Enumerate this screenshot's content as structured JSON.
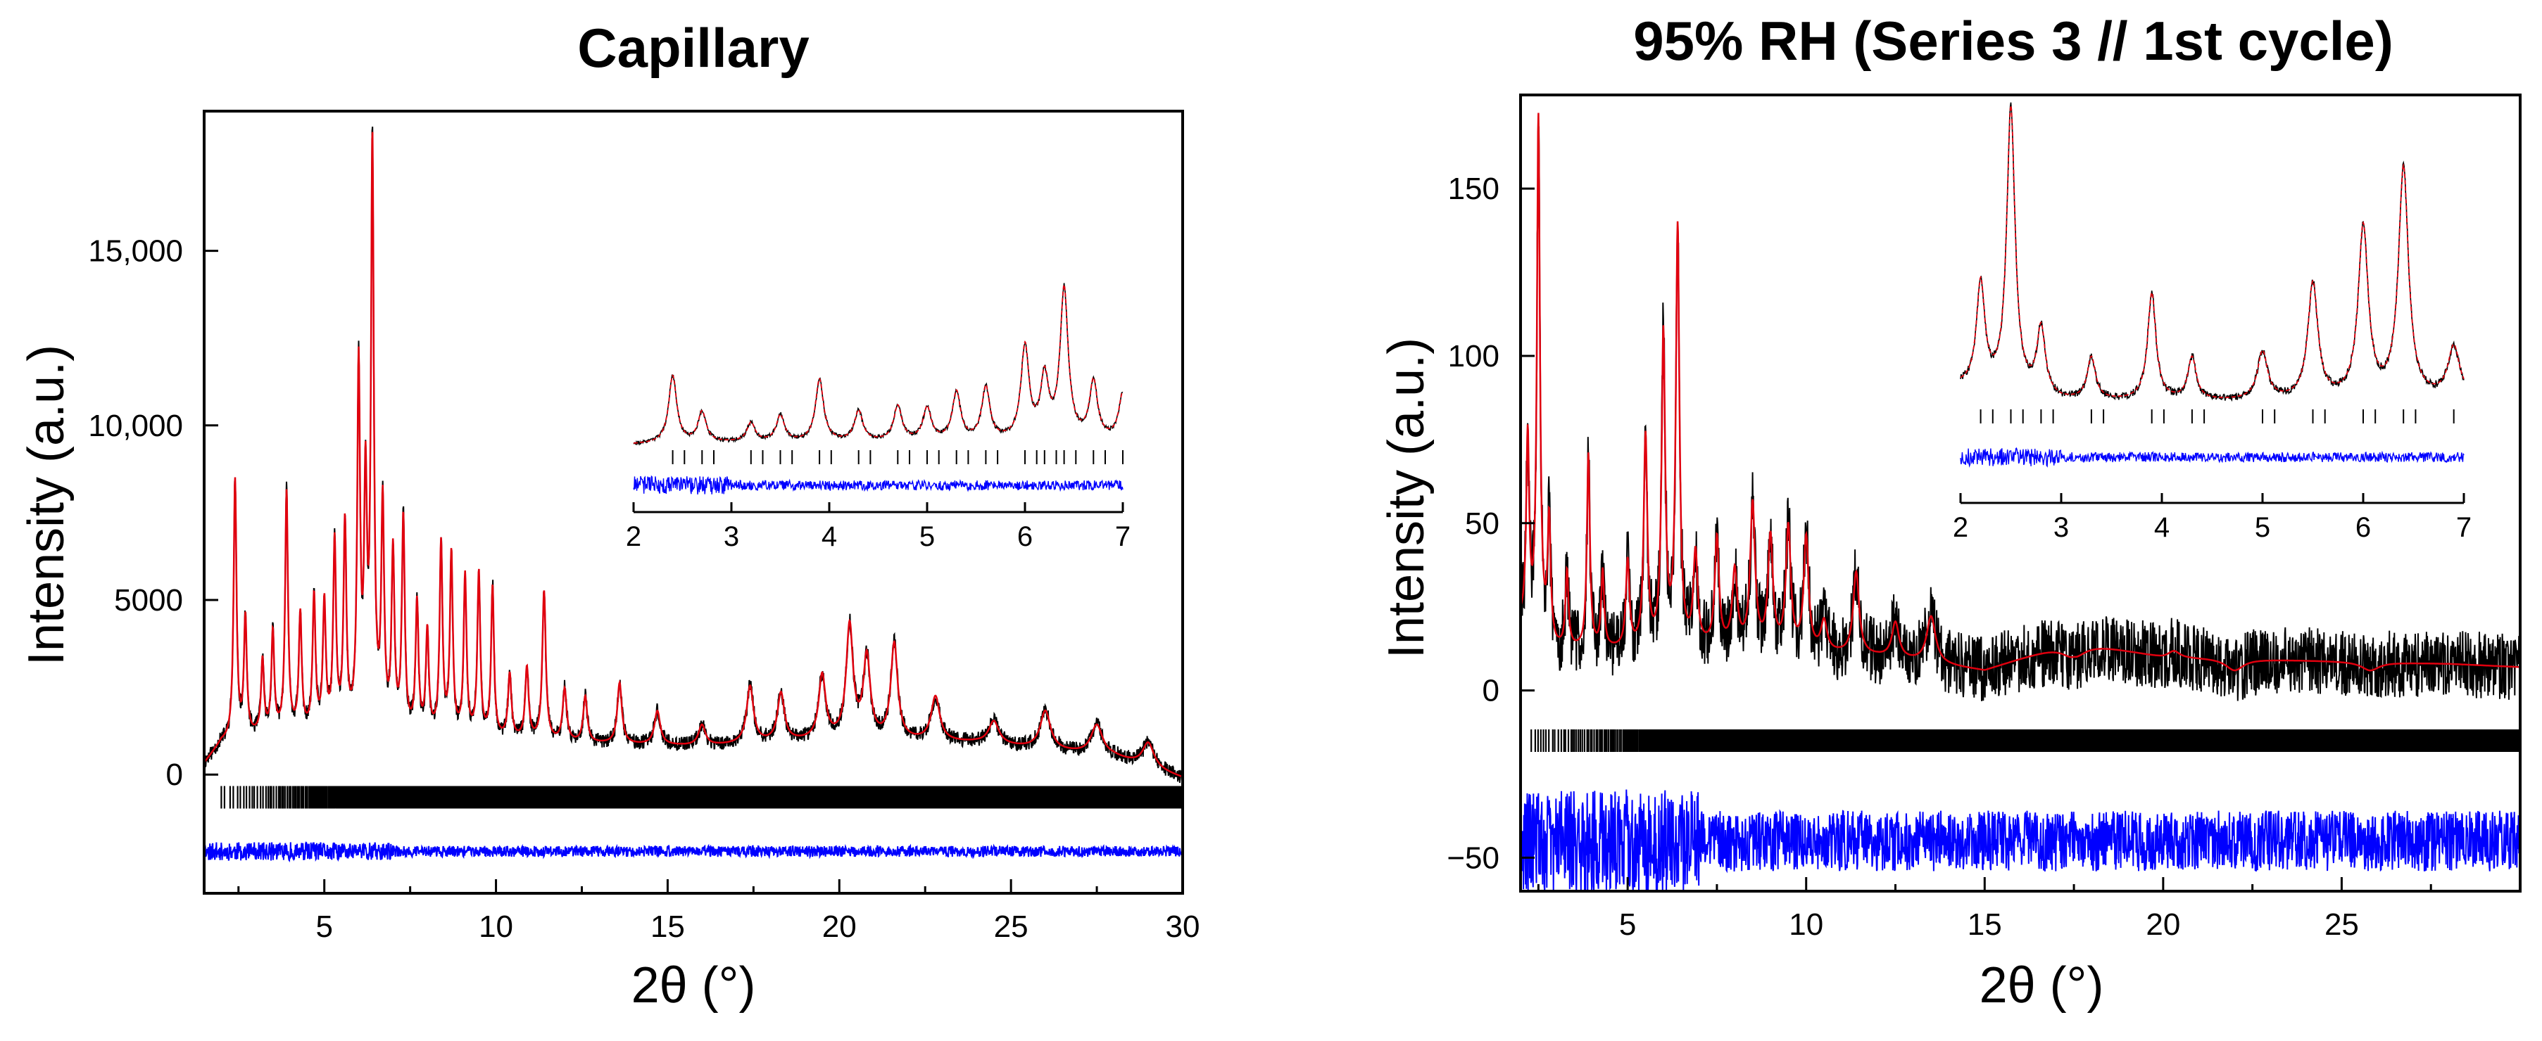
{
  "colors": {
    "observed": "#000000",
    "calculated": "#e0000e",
    "difference": "#0000ff",
    "reflections": "#000000",
    "axis": "#000000"
  },
  "chart_data": [
    {
      "type": "line",
      "title": "Capillary",
      "xlabel": "2θ (°)",
      "ylabel": "Intensity (a.u.)",
      "xlim": [
        1.5,
        30
      ],
      "ylim": [
        -3400,
        19000
      ],
      "xticks": [
        {
          "v": 5,
          "label": "5"
        },
        {
          "v": 10,
          "label": "10"
        },
        {
          "v": 15,
          "label": "15"
        },
        {
          "v": 20,
          "label": "20"
        },
        {
          "v": 25,
          "label": "25"
        },
        {
          "v": 30,
          "label": "30"
        }
      ],
      "yticks": [
        {
          "v": 0,
          "label": "0"
        },
        {
          "v": 5000,
          "label": "5000"
        },
        {
          "v": 10000,
          "label": "10,000"
        },
        {
          "v": 15000,
          "label": "15,000"
        }
      ],
      "series": [
        {
          "name": "Observed",
          "color": "#000000"
        },
        {
          "name": "Calculated",
          "color": "#e0000e"
        },
        {
          "name": "Difference",
          "color": "#0000ff"
        },
        {
          "name": "Reflection positions",
          "color": "#000000"
        }
      ],
      "background": [
        [
          1.5,
          300
        ],
        [
          2.0,
          900
        ],
        [
          3.0,
          1100
        ],
        [
          5.0,
          1200
        ],
        [
          8.0,
          1100
        ],
        [
          12.0,
          900
        ],
        [
          16.0,
          800
        ],
        [
          20.0,
          1000
        ],
        [
          24.0,
          900
        ],
        [
          28.0,
          500
        ],
        [
          30.0,
          -100
        ]
      ],
      "peaks": [
        [
          2.4,
          8400,
          0.05
        ],
        [
          2.7,
          4400,
          0.05
        ],
        [
          3.2,
          3200,
          0.05
        ],
        [
          3.5,
          4000,
          0.05
        ],
        [
          3.9,
          8000,
          0.05
        ],
        [
          4.3,
          4500,
          0.05
        ],
        [
          4.7,
          5000,
          0.05
        ],
        [
          5.0,
          4800,
          0.05
        ],
        [
          5.3,
          6500,
          0.05
        ],
        [
          5.6,
          7000,
          0.05
        ],
        [
          6.0,
          11400,
          0.05
        ],
        [
          6.2,
          7800,
          0.05
        ],
        [
          6.4,
          17700,
          0.05
        ],
        [
          6.7,
          7500,
          0.05
        ],
        [
          7.0,
          6200,
          0.05
        ],
        [
          7.3,
          7200,
          0.05
        ],
        [
          7.7,
          4800,
          0.05
        ],
        [
          8.0,
          4000,
          0.05
        ],
        [
          8.4,
          6500,
          0.05
        ],
        [
          8.7,
          6200,
          0.05
        ],
        [
          9.1,
          5600,
          0.05
        ],
        [
          9.5,
          5700,
          0.05
        ],
        [
          9.9,
          5300,
          0.05
        ],
        [
          10.4,
          2800,
          0.06
        ],
        [
          10.9,
          3000,
          0.06
        ],
        [
          11.4,
          5200,
          0.06
        ],
        [
          12.0,
          2400,
          0.07
        ],
        [
          12.6,
          2200,
          0.07
        ],
        [
          13.6,
          2600,
          0.08
        ],
        [
          14.7,
          1800,
          0.1
        ],
        [
          16.0,
          1400,
          0.12
        ],
        [
          17.4,
          2500,
          0.12
        ],
        [
          18.3,
          2300,
          0.12
        ],
        [
          19.5,
          2800,
          0.12
        ],
        [
          20.3,
          4200,
          0.12
        ],
        [
          20.8,
          3300,
          0.12
        ],
        [
          21.6,
          3700,
          0.12
        ],
        [
          22.8,
          2200,
          0.15
        ],
        [
          24.5,
          1500,
          0.18
        ],
        [
          26.0,
          1800,
          0.18
        ],
        [
          27.5,
          1400,
          0.2
        ],
        [
          29.0,
          900,
          0.2
        ]
      ],
      "reflections": {
        "y": -650,
        "x_start": 2.0,
        "x_end": 30.0
      },
      "difference_offset": -2200,
      "inset": {
        "xlim": [
          2,
          7
        ],
        "xticks": [
          {
            "v": 2,
            "label": "2"
          },
          {
            "v": 3,
            "label": "3"
          },
          {
            "v": 4,
            "label": "4"
          },
          {
            "v": 5,
            "label": "5"
          },
          {
            "v": 6,
            "label": "6"
          },
          {
            "v": 7,
            "label": "7"
          }
        ]
      }
    },
    {
      "type": "line",
      "title": "95% RH (Series 3 // 1st cycle)",
      "xlabel": "2θ (°)",
      "ylabel": "Intensity (a.u.)",
      "xlim": [
        2,
        30
      ],
      "ylim": [
        -60,
        178
      ],
      "xticks": [
        {
          "v": 5,
          "label": "5"
        },
        {
          "v": 10,
          "label": "10"
        },
        {
          "v": 15,
          "label": "15"
        },
        {
          "v": 20,
          "label": "20"
        },
        {
          "v": 25,
          "label": "25"
        }
      ],
      "yticks": [
        {
          "v": -50,
          "label": "−50"
        },
        {
          "v": 0,
          "label": "0"
        },
        {
          "v": 50,
          "label": "50"
        },
        {
          "v": 100,
          "label": "100"
        },
        {
          "v": 150,
          "label": "150"
        }
      ],
      "series": [
        {
          "name": "Observed",
          "color": "#000000"
        },
        {
          "name": "Calculated",
          "color": "#e0000e"
        },
        {
          "name": "Difference",
          "color": "#0000ff"
        },
        {
          "name": "Reflection positions",
          "color": "#000000"
        }
      ],
      "background": [
        [
          2.0,
          20
        ],
        [
          3.0,
          12
        ],
        [
          5.0,
          12
        ],
        [
          8.0,
          13
        ],
        [
          12.0,
          10
        ],
        [
          15.0,
          6
        ],
        [
          17.5,
          15
        ],
        [
          20.0,
          10
        ],
        [
          24.0,
          9
        ],
        [
          28.0,
          8
        ],
        [
          30.0,
          7
        ]
      ],
      "peaks": [
        [
          2.2,
          75,
          0.05
        ],
        [
          2.5,
          170,
          0.05
        ],
        [
          2.8,
          50,
          0.05
        ],
        [
          3.3,
          35,
          0.05
        ],
        [
          3.9,
          70,
          0.05
        ],
        [
          4.3,
          35,
          0.05
        ],
        [
          5.0,
          38,
          0.06
        ],
        [
          5.5,
          75,
          0.06
        ],
        [
          6.0,
          105,
          0.06
        ],
        [
          6.4,
          137,
          0.06
        ],
        [
          6.9,
          40,
          0.07
        ],
        [
          7.5,
          45,
          0.07
        ],
        [
          8.0,
          35,
          0.08
        ],
        [
          8.5,
          55,
          0.08
        ],
        [
          9.0,
          45,
          0.08
        ],
        [
          9.5,
          48,
          0.08
        ],
        [
          10.0,
          45,
          0.08
        ],
        [
          10.5,
          20,
          0.1
        ],
        [
          11.4,
          35,
          0.1
        ],
        [
          12.5,
          20,
          0.12
        ],
        [
          13.5,
          22,
          0.15
        ],
        [
          17.5,
          10,
          0.4
        ],
        [
          20.3,
          12,
          0.2
        ],
        [
          22.0,
          6,
          0.3
        ],
        [
          25.8,
          6,
          0.3
        ]
      ],
      "reflections": {
        "y": -15,
        "x_start": 2.3,
        "x_end": 30.0
      },
      "difference_offset": -45,
      "inset": {
        "xlim": [
          2,
          7
        ],
        "xticks": [
          {
            "v": 2,
            "label": "2"
          },
          {
            "v": 3,
            "label": "3"
          },
          {
            "v": 4,
            "label": "4"
          },
          {
            "v": 5,
            "label": "5"
          },
          {
            "v": 6,
            "label": "6"
          },
          {
            "v": 7,
            "label": "7"
          }
        ]
      }
    }
  ]
}
